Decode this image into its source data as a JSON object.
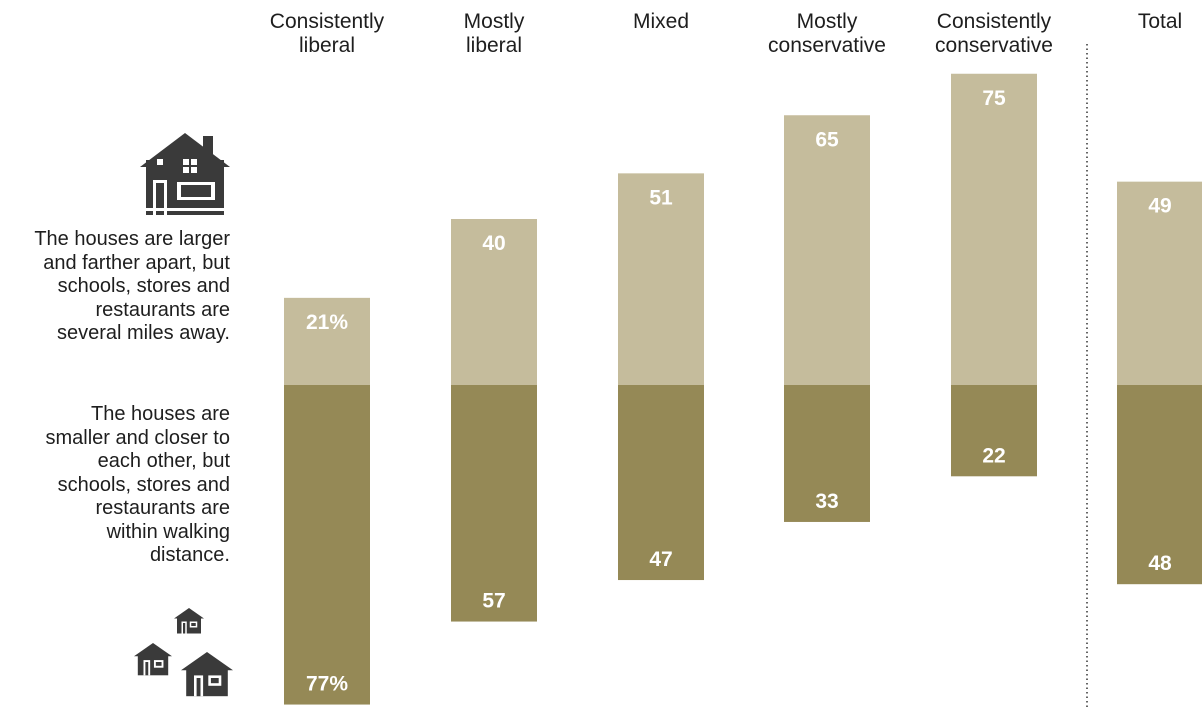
{
  "chart_data": {
    "type": "bar",
    "stacked": true,
    "diverging": true,
    "categories": [
      "Consistently liberal",
      "Mostly liberal",
      "Mixed",
      "Mostly conservative",
      "Consistently conservative",
      "Total"
    ],
    "series": [
      {
        "name": "The houses are larger and farther apart, but schools, stores and restaurants are several miles away.",
        "values": [
          21,
          40,
          51,
          65,
          75,
          49
        ],
        "labels": [
          "21%",
          "40",
          "51",
          "65",
          "75",
          "49"
        ]
      },
      {
        "name": "The houses are smaller and closer to each other, but schools, stores and restaurants are within walking distance.",
        "values": [
          77,
          57,
          47,
          33,
          22,
          48
        ],
        "labels": [
          "77%",
          "57",
          "47",
          "33",
          "22",
          "48"
        ]
      }
    ],
    "colors": {
      "upper": "#c5bc9c",
      "lower": "#958956",
      "bar_text": "#ffffff",
      "divider": "#333333",
      "icon": "#3a3a3a"
    }
  },
  "category_headers": [
    [
      "Consistently",
      "liberal"
    ],
    [
      "Mostly",
      "liberal"
    ],
    [
      "Mixed"
    ],
    [
      "Mostly",
      "conservative"
    ],
    [
      "Consistently",
      "conservative"
    ],
    [
      "Total"
    ]
  ],
  "legend": {
    "upper_option": {
      "lines": [
        "The houses are larger",
        "and farther apart, but",
        "schools, stores and",
        "restaurants are",
        "several miles away."
      ],
      "icon": "large-house-icon"
    },
    "lower_option": {
      "lines": [
        "The houses are",
        "smaller and closer to",
        "each other, but",
        "schools, stores and",
        "restaurants are",
        "within walking",
        "distance."
      ],
      "icon": "small-houses-icon"
    }
  }
}
